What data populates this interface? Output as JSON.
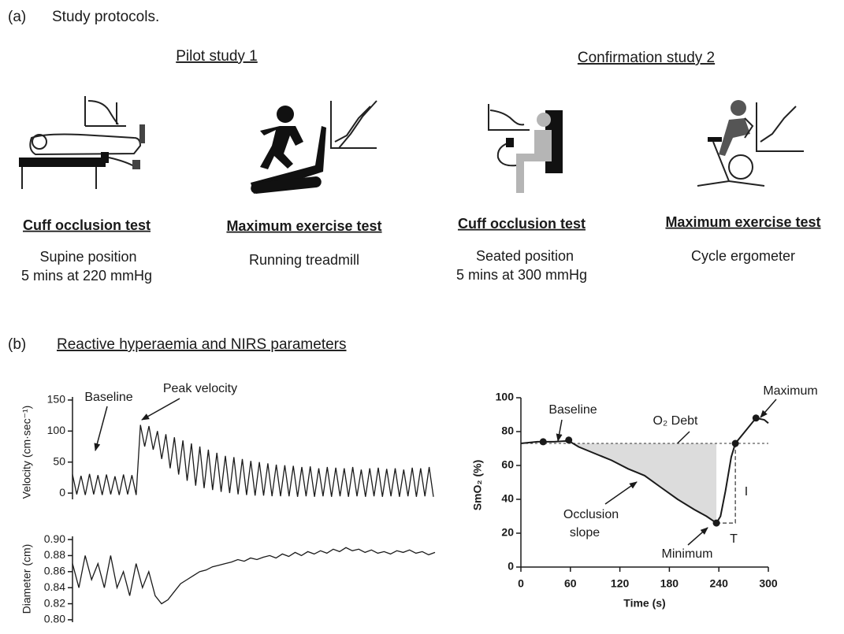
{
  "panel_a": {
    "label": "(a)",
    "title": "Study protocols.",
    "studies": [
      {
        "title": "Pilot study 1",
        "tests": [
          {
            "name": "Cuff occlusion test",
            "lines": [
              "Supine position",
              "5 mins at 220 mmHg"
            ]
          },
          {
            "name": "Maximum exercise test",
            "lines": [
              "Running treadmill"
            ]
          }
        ]
      },
      {
        "title": "Confirmation study 2",
        "tests": [
          {
            "name": "Cuff occlusion test",
            "lines": [
              "Seated position",
              "5 mins at 300 mmHg"
            ]
          },
          {
            "name": "Maximum exercise test",
            "lines": [
              "Cycle ergometer"
            ]
          }
        ]
      }
    ]
  },
  "panel_b": {
    "label": "(b)",
    "title": "Reactive hyperaemia and NIRS parameters"
  },
  "chart_data": [
    {
      "type": "line",
      "ylabel": "Velocity (cm·sec⁻¹)",
      "color": "#1a1a1a",
      "ylim": [
        -10,
        155
      ],
      "yticks": [
        0,
        50,
        100,
        150
      ],
      "annotations": [
        "Baseline",
        "Peak velocity"
      ],
      "values": [
        30,
        -2,
        28,
        -3,
        31,
        -2,
        29,
        -3,
        30,
        -2,
        27,
        -3,
        30,
        -2,
        29,
        -3,
        110,
        75,
        108,
        70,
        100,
        55,
        95,
        40,
        90,
        30,
        85,
        20,
        80,
        12,
        75,
        8,
        70,
        5,
        65,
        2,
        60,
        0,
        58,
        -2,
        55,
        -3,
        52,
        -4,
        50,
        -4,
        48,
        -5,
        46,
        -5,
        45,
        -5,
        44,
        -6,
        42,
        -5,
        43,
        -6,
        40,
        -5,
        42,
        -6,
        41,
        -5,
        40,
        -6,
        42,
        -5,
        38,
        -6,
        40,
        -5,
        41,
        -6,
        39,
        -5,
        40,
        -6,
        38,
        -5,
        41,
        -6,
        40,
        -5,
        42,
        -6
      ]
    },
    {
      "type": "line",
      "ylabel": "Diameter (cm)",
      "color": "#1a1a1a",
      "ylim": [
        0.797,
        0.904
      ],
      "yticks": [
        {
          "value": 0.8,
          "label": "0.80"
        },
        0.82,
        0.84,
        0.86,
        0.88,
        {
          "value": 0.9,
          "label": "0.90"
        }
      ],
      "values": [
        0.87,
        0.84,
        0.88,
        0.85,
        0.87,
        0.84,
        0.88,
        0.84,
        0.86,
        0.83,
        0.87,
        0.84,
        0.86,
        0.83,
        0.82,
        0.825,
        0.835,
        0.845,
        0.85,
        0.855,
        0.86,
        0.862,
        0.866,
        0.868,
        0.87,
        0.872,
        0.875,
        0.873,
        0.877,
        0.875,
        0.878,
        0.88,
        0.877,
        0.882,
        0.879,
        0.884,
        0.88,
        0.885,
        0.882,
        0.886,
        0.883,
        0.888,
        0.885,
        0.89,
        0.886,
        0.888,
        0.884,
        0.887,
        0.883,
        0.885,
        0.882,
        0.886,
        0.884,
        0.887,
        0.883,
        0.885,
        0.881,
        0.884
      ]
    },
    {
      "type": "nirs",
      "xlabel": "Time (s)",
      "ylabel": "SmO₂ (%)",
      "color": "#1a1a1a",
      "area_color": "#dcdcdc",
      "xlim": [
        0,
        300
      ],
      "xticks": [
        0,
        60,
        120,
        180,
        240,
        300
      ],
      "ylim": [
        0,
        100
      ],
      "yticks": [
        0,
        20,
        40,
        60,
        80,
        100
      ],
      "reference_line": 73,
      "x": [
        0,
        20,
        40,
        58,
        70,
        90,
        110,
        130,
        140,
        150,
        170,
        190,
        210,
        225,
        237,
        242,
        248,
        255,
        260,
        270,
        285,
        295,
        300
      ],
      "values": [
        73,
        74,
        74,
        74.5,
        71,
        67,
        63,
        58,
        56,
        54,
        47,
        40,
        34,
        30,
        26,
        30,
        45,
        65,
        73,
        79,
        88,
        87,
        85
      ],
      "points": {
        "x": [
          27,
          58,
          237,
          260,
          285
        ],
        "values": [
          74,
          75,
          26,
          73,
          88
        ]
      },
      "annotations": [
        "Baseline",
        "O₂ Debt",
        "Occlusion",
        "slope",
        "Minimum",
        "Maximum",
        "T",
        "I"
      ]
    }
  ]
}
